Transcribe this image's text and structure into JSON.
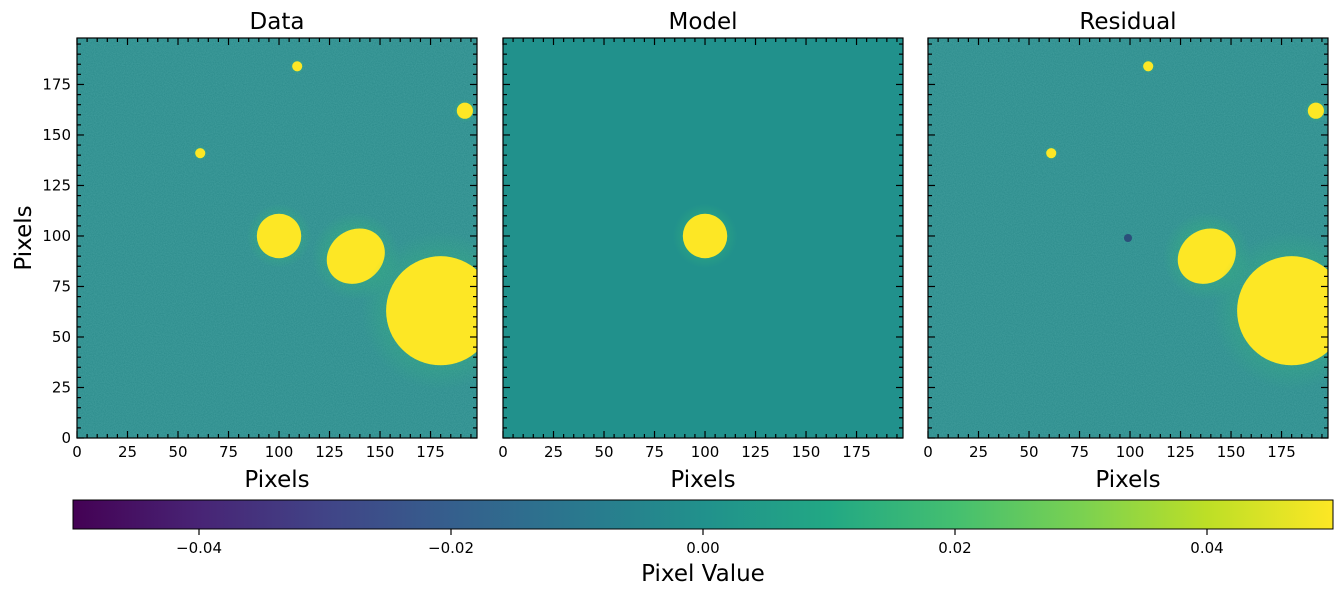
{
  "chart_data": {
    "type": "heatmap",
    "colormap": "viridis",
    "panels": [
      {
        "title": "Data",
        "xlabel": "Pixels",
        "ylabel": "Pixels",
        "x_range": [
          0,
          198
        ],
        "y_range": [
          0,
          198
        ],
        "x_ticks": [
          0,
          25,
          50,
          75,
          100,
          125,
          150,
          175
        ],
        "y_ticks": [
          0,
          25,
          50,
          75,
          100,
          125,
          150,
          175
        ],
        "sources": [
          {
            "kind": "disk",
            "x": 100,
            "y": 100,
            "r": 11
          },
          {
            "kind": "ellipse",
            "x": 138,
            "y": 90,
            "rx": 15,
            "ry": 13,
            "rotate": -35
          },
          {
            "kind": "disk",
            "x": 180,
            "y": 63,
            "r": 27
          },
          {
            "kind": "disk",
            "x": 192,
            "y": 162,
            "r": 4
          },
          {
            "kind": "disk",
            "x": 109,
            "y": 184,
            "r": 2.5
          },
          {
            "kind": "disk",
            "x": 61,
            "y": 141,
            "r": 2.5
          }
        ]
      },
      {
        "title": "Model",
        "xlabel": "Pixels",
        "ylabel": "",
        "x_range": [
          0,
          198
        ],
        "y_range": [
          0,
          198
        ],
        "x_ticks": [
          0,
          25,
          50,
          75,
          100,
          125,
          150,
          175
        ],
        "y_ticks": [],
        "sources": [
          {
            "kind": "disk",
            "x": 100,
            "y": 100,
            "r": 11
          }
        ]
      },
      {
        "title": "Residual",
        "xlabel": "Pixels",
        "ylabel": "",
        "x_range": [
          0,
          198
        ],
        "y_range": [
          0,
          198
        ],
        "x_ticks": [
          0,
          25,
          50,
          75,
          100,
          125,
          150,
          175
        ],
        "y_ticks": [],
        "sources": [
          {
            "kind": "ellipse",
            "x": 138,
            "y": 90,
            "rx": 15,
            "ry": 13,
            "rotate": -35
          },
          {
            "kind": "disk",
            "x": 180,
            "y": 63,
            "r": 27
          },
          {
            "kind": "disk",
            "x": 192,
            "y": 162,
            "r": 4
          },
          {
            "kind": "disk",
            "x": 109,
            "y": 184,
            "r": 2.5
          },
          {
            "kind": "disk",
            "x": 61,
            "y": 141,
            "r": 2.5
          },
          {
            "kind": "dip",
            "x": 99,
            "y": 99,
            "r": 2
          }
        ]
      }
    ],
    "colorbar": {
      "label": "Pixel Value",
      "vmin": -0.05,
      "vmax": 0.05,
      "ticks": [
        -0.04,
        -0.02,
        0.0,
        0.02,
        0.04
      ],
      "tick_labels": [
        "−0.04",
        "−0.02",
        "0.00",
        "0.02",
        "0.04"
      ],
      "orientation": "horizontal"
    }
  },
  "colors": {
    "background_data": "#2a8a8a",
    "background_model": "#21918c",
    "saturated": "#fde725",
    "halo": "#35b779"
  }
}
